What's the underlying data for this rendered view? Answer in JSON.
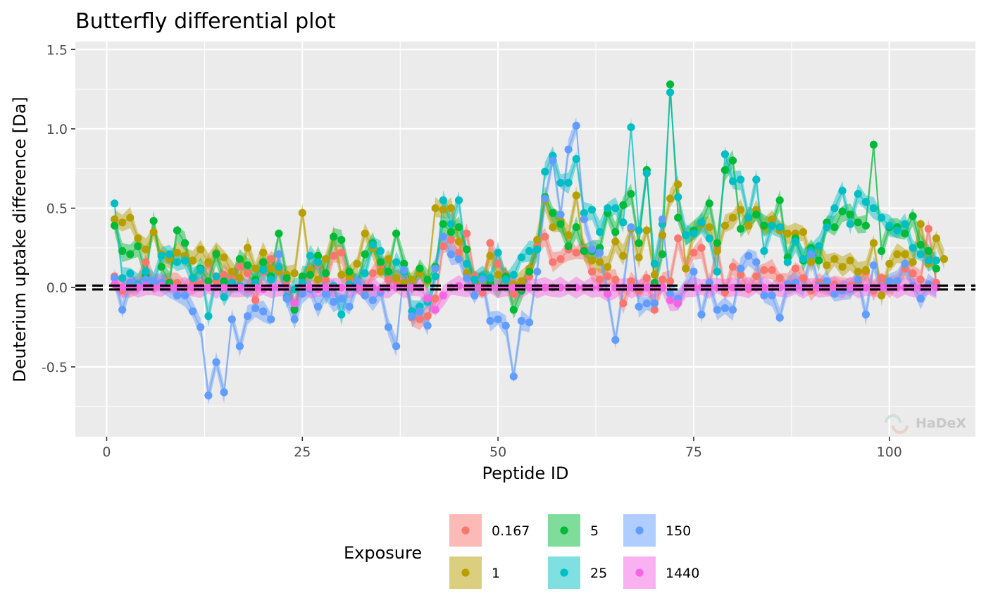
{
  "chart_data": {
    "type": "line",
    "title": "Butterfly differential plot",
    "xlabel": "Peptide ID",
    "ylabel": "Deuterium uptake difference [Da]",
    "xlim": [
      -4,
      111
    ],
    "ylim": [
      -0.94,
      1.55
    ],
    "x_ticks": [
      0,
      25,
      50,
      75,
      100
    ],
    "y_ticks": [
      -0.5,
      0.0,
      0.5,
      1.0,
      1.5
    ],
    "y_tick_labels": [
      "-0.5",
      "0.0",
      "0.5",
      "1.0",
      "1.5"
    ],
    "threshold_lines": [
      0.012,
      -0.012
    ],
    "background": "#ebebeb",
    "grid": true,
    "legend": {
      "title": "Exposure",
      "position": "bottom"
    },
    "watermark": "HaDeX",
    "series": [
      {
        "name": "0.167",
        "color": "#F8766D",
        "x_start": 1,
        "values": [
          0.07,
          -0.02,
          0.0,
          0.02,
          0.16,
          0.03,
          0.02,
          0.04,
          0.03,
          0.0,
          0.02,
          0.02,
          0.15,
          0.04,
          0.08,
          0.06,
          0.13,
          0.09,
          -0.08,
          0.1,
          0.18,
          0.12,
          0.04,
          -0.13,
          0.06,
          0.1,
          0.15,
          0.05,
          0.2,
          0.22,
          0.05,
          0.03,
          -0.02,
          0.09,
          0.14,
          0.05,
          0.04,
          0.1,
          -0.19,
          -0.2,
          -0.18,
          -0.07,
          0.26,
          0.3,
          0.22,
          0.34,
          0.07,
          -0.03,
          0.28,
          0.15,
          0.08,
          -0.04,
          0.0,
          0.07,
          0.26,
          0.32,
          0.16,
          0.18,
          0.24,
          0.22,
          0.24,
          0.1,
          0.05,
          0.07,
          0.05,
          -0.1,
          0.04,
          -0.02,
          0.06,
          -0.14,
          0.05,
          0.04,
          0.31,
          0.12,
          0.22,
          0.25,
          0.01,
          0.25,
          -0.03,
          0.13,
          0.08,
          -0.01,
          0.07,
          0.11,
          0.11,
          0.06,
          0.02,
          0.12,
          0.06,
          -0.02,
          0.03,
          0.0,
          0.02,
          0.0,
          0.01,
          0.03,
          0.1,
          -0.02,
          0.06,
          0.0,
          0.04,
          0.12,
          0.09,
          0.05,
          0.37,
          0.03
        ]
      },
      {
        "name": "1",
        "color": "#B79F00",
        "x_start": 1,
        "values": [
          0.43,
          0.41,
          0.44,
          0.31,
          0.24,
          0.35,
          0.21,
          0.18,
          0.22,
          0.2,
          0.17,
          0.24,
          0.16,
          0.22,
          0.19,
          0.1,
          0.06,
          0.25,
          0.12,
          0.22,
          0.12,
          0.1,
          0.08,
          0.09,
          0.47,
          0.11,
          0.05,
          0.18,
          0.32,
          0.08,
          0.07,
          0.15,
          0.34,
          0.25,
          0.1,
          0.18,
          0.06,
          0.03,
          0.05,
          0.09,
          0.04,
          0.5,
          0.49,
          0.5,
          0.29,
          0.09,
          0.05,
          0.03,
          0.2,
          0.08,
          0.06,
          0.02,
          0.04,
          0.12,
          0.3,
          0.55,
          0.38,
          0.42,
          0.33,
          0.58,
          0.23,
          0.17,
          0.16,
          0.13,
          0.29,
          0.2,
          0.37,
          0.19,
          0.36,
          0.08,
          0.33,
          0.56,
          0.65,
          0.12,
          0.35,
          0.4,
          0.38,
          0.23,
          0.39,
          0.44,
          0.49,
          0.39,
          0.49,
          0.38,
          0.43,
          0.36,
          0.34,
          0.34,
          0.35,
          0.16,
          0.26,
          0.14,
          0.18,
          0.13,
          0.17,
          0.1,
          0.11,
          0.28,
          -0.05,
          0.15,
          0.21,
          0.21,
          0.16,
          0.4,
          0.15,
          0.31,
          0.18
        ]
      },
      {
        "name": "5",
        "color": "#00BA38",
        "x_start": 1,
        "values": [
          0.39,
          0.23,
          0.21,
          0.26,
          0.08,
          0.42,
          0.13,
          0.03,
          0.36,
          0.28,
          0.06,
          0.12,
          0.04,
          0.21,
          0.04,
          0.03,
          0.18,
          0.14,
          0.05,
          0.16,
          0.07,
          0.34,
          0.06,
          -0.14,
          0.07,
          0.08,
          0.2,
          0.09,
          0.32,
          0.3,
          0.1,
          0.0,
          0.21,
          0.28,
          0.16,
          0.1,
          0.34,
          0.15,
          0.0,
          0.12,
          0.05,
          0.13,
          0.4,
          0.35,
          0.38,
          0.24,
          0.0,
          0.07,
          0.03,
          0.0,
          0.07,
          -0.14,
          -0.02,
          0.1,
          0.24,
          0.57,
          0.47,
          0.4,
          0.26,
          0.38,
          0.23,
          0.23,
          0.25,
          0.47,
          0.35,
          0.52,
          0.59,
          0.28,
          0.74,
          0.03,
          0.21,
          1.28,
          0.44,
          0.33,
          0.36,
          0.41,
          0.53,
          0.28,
          0.74,
          0.8,
          0.37,
          0.44,
          0.46,
          0.39,
          0.39,
          0.55,
          0.19,
          0.31,
          0.17,
          0.25,
          0.17,
          0.41,
          0.38,
          0.48,
          0.46,
          0.41,
          0.39,
          0.9,
          0.23,
          0.38,
          0.38,
          0.34,
          0.45,
          0.27,
          0.23,
          0.12
        ]
      },
      {
        "name": "25",
        "color": "#00BFC4",
        "x_start": 1,
        "values": [
          0.53,
          0.06,
          0.09,
          0.02,
          0.1,
          0.03,
          0.2,
          0.21,
          0.16,
          0.17,
          0.06,
          0.11,
          -0.18,
          0.07,
          -0.06,
          0.03,
          0.01,
          0.0,
          0.03,
          0.11,
          0.05,
          0.13,
          -0.06,
          -0.01,
          0.03,
          0.2,
          0.16,
          -0.04,
          0.01,
          -0.17,
          0.02,
          0.03,
          0.09,
          0.27,
          0.23,
          0.0,
          0.16,
          0.1,
          -0.15,
          -0.12,
          -0.09,
          0.07,
          0.55,
          0.4,
          0.55,
          0.15,
          0.05,
          0.07,
          0.06,
          0.22,
          0.05,
          0.08,
          0.19,
          0.23,
          0.24,
          0.73,
          0.83,
          0.66,
          0.66,
          0.81,
          0.47,
          0.49,
          0.35,
          0.5,
          0.5,
          0.41,
          1.01,
          0.36,
          0.72,
          0.15,
          0.4,
          1.23,
          0.57,
          0.33,
          0.34,
          0.41,
          0.31,
          0.1,
          0.84,
          0.67,
          0.68,
          0.44,
          0.68,
          0.23,
          0.39,
          0.38,
          0.16,
          0.29,
          0.18,
          0.23,
          0.26,
          0.38,
          0.5,
          0.61,
          0.4,
          0.59,
          0.54,
          0.5,
          0.44,
          0.39,
          0.36,
          0.4,
          0.25,
          0.21,
          0.17,
          0.17
        ]
      },
      {
        "name": "150",
        "color": "#619CFF",
        "x_start": 1,
        "values": [
          0.06,
          -0.14,
          0.03,
          0.01,
          0.05,
          0.04,
          0.03,
          0.0,
          -0.05,
          -0.05,
          -0.15,
          -0.25,
          -0.68,
          -0.47,
          -0.66,
          -0.2,
          -0.37,
          -0.18,
          -0.13,
          -0.15,
          -0.2,
          0.21,
          -0.07,
          -0.2,
          -0.04,
          -0.01,
          -0.12,
          -0.04,
          -0.09,
          -0.07,
          -0.12,
          0.04,
          -0.05,
          -0.08,
          -0.03,
          -0.25,
          -0.37,
          0.11,
          -0.18,
          -0.15,
          -0.24,
          0.12,
          0.32,
          0.21,
          0.18,
          0.06,
          -0.05,
          0.05,
          -0.21,
          -0.2,
          -0.24,
          -0.56,
          -0.21,
          -0.22,
          0.1,
          0.56,
          0.8,
          0.46,
          0.87,
          1.02,
          0.43,
          0.24,
          0.22,
          -0.04,
          -0.33,
          0.0,
          0.38,
          -0.12,
          -0.1,
          -0.1,
          0.43,
          -0.04,
          -0.07,
          0.0,
          0.1,
          -0.17,
          0.03,
          -0.14,
          -0.13,
          -0.14,
          0.12,
          0.2,
          0.16,
          -0.05,
          -0.05,
          -0.19,
          0.02,
          0.03,
          0.0,
          0.21,
          0.01,
          0.04,
          -0.04,
          -0.02,
          -0.01,
          0.05,
          -0.17,
          0.14,
          0.0,
          0.04,
          0.04,
          0.15,
          0.01,
          -0.07,
          0.02,
          0.0
        ]
      },
      {
        "name": "1440",
        "color": "#F564E3",
        "x_start": 1,
        "values": [
          0.02,
          0.0,
          0.0,
          0.0,
          0.01,
          0.0,
          0.01,
          0.0,
          0.0,
          0.0,
          0.0,
          0.0,
          0.0,
          0.0,
          0.0,
          0.0,
          0.0,
          -0.01,
          0.0,
          -0.01,
          0.0,
          0.0,
          0.0,
          -0.1,
          0.0,
          0.0,
          -0.01,
          0.0,
          0.0,
          0.0,
          0.0,
          0.0,
          0.0,
          0.0,
          -0.01,
          0.0,
          0.0,
          0.0,
          0.0,
          0.0,
          -0.07,
          -0.14,
          -0.05,
          0.0,
          0.01,
          0.0,
          0.0,
          0.0,
          0.0,
          0.0,
          0.0,
          0.0,
          0.0,
          0.0,
          0.0,
          0.0,
          0.0,
          0.0,
          0.0,
          0.0,
          0.0,
          0.0,
          0.0,
          -0.04,
          0.0,
          0.0,
          0.0,
          0.0,
          0.0,
          0.0,
          0.0,
          -0.08,
          -0.1,
          0.0,
          0.0,
          0.0,
          0.0,
          0.0,
          0.0,
          0.0,
          0.0,
          0.0,
          0.0,
          0.0,
          0.0,
          0.0,
          0.0,
          0.0,
          0.0,
          0.0,
          0.0,
          0.0,
          0.0,
          0.0,
          0.0,
          0.0,
          0.0,
          0.0,
          0.0,
          0.0,
          0.0,
          0.0,
          0.0,
          0.0,
          0.0,
          0.0
        ]
      }
    ]
  }
}
